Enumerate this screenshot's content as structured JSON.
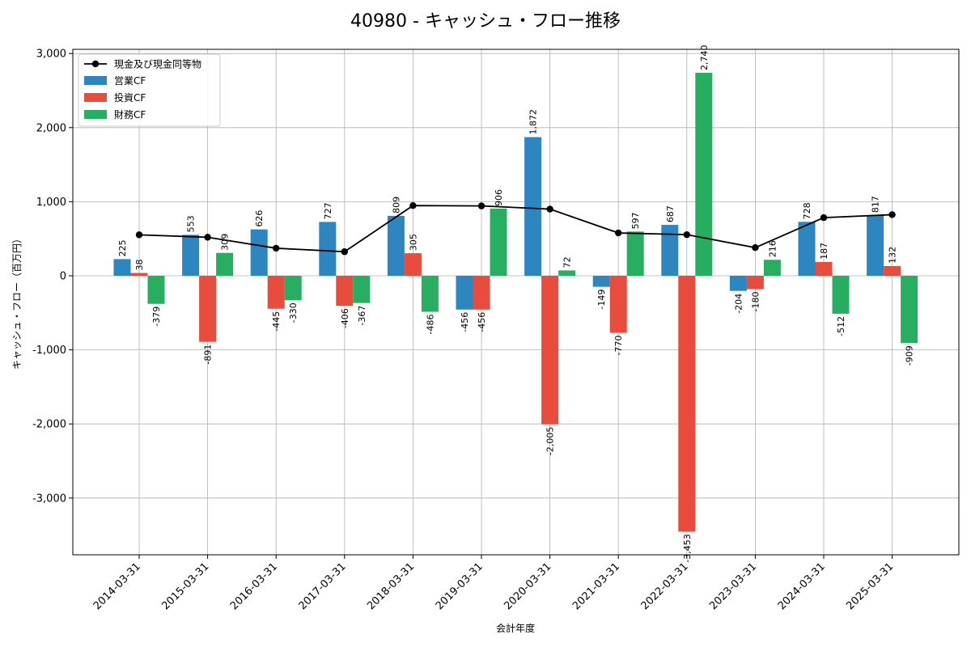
{
  "chart_data": {
    "type": "bar",
    "title": "40980 - キャッシュ・フロー推移",
    "xlabel": "会計年度",
    "ylabel": "キャッシュ・フロー（百万円）",
    "ylim": [
      -3700,
      3050
    ],
    "yticks": [
      -3000,
      -2000,
      -1000,
      0,
      1000,
      2000,
      3000
    ],
    "ytick_labels": [
      "-3,000",
      "-2,000",
      "-1,000",
      "0",
      "1,000",
      "2,000",
      "3,000"
    ],
    "categories": [
      "2014-03-31",
      "2015-03-31",
      "2016-03-31",
      "2017-03-31",
      "2018-03-31",
      "2019-03-31",
      "2020-03-31",
      "2021-03-31",
      "2022-03-31",
      "2023-03-31",
      "2024-03-31",
      "2025-03-31"
    ],
    "series": [
      {
        "name": "営業CF",
        "kind": "bar",
        "color": "#2e86c1",
        "values": [
          225,
          553,
          626,
          727,
          809,
          -456,
          1872,
          -149,
          687,
          -204,
          728,
          817
        ],
        "labels": [
          "225",
          "553",
          "626",
          "727",
          "809",
          "-456",
          "1,872",
          "-149",
          "687",
          "-204",
          "728",
          "817"
        ]
      },
      {
        "name": "投資CF",
        "kind": "bar",
        "color": "#e74c3c",
        "values": [
          38,
          -891,
          -445,
          -406,
          305,
          -456,
          -2005,
          -770,
          -3453,
          -180,
          187,
          132
        ],
        "labels": [
          "38",
          "-891",
          "-445",
          "-406",
          "305",
          "-456",
          "-2,005",
          "-770",
          "-3,453",
          "-180",
          "187",
          "132"
        ]
      },
      {
        "name": "財務CF",
        "kind": "bar",
        "color": "#27ae60",
        "values": [
          -379,
          309,
          -330,
          -367,
          -486,
          906,
          72,
          597,
          2740,
          216,
          -512,
          -909
        ],
        "labels": [
          "-379",
          "309",
          "-330",
          "-367",
          "-486",
          "906",
          "72",
          "597",
          "2,740",
          "216",
          "-512",
          "-909"
        ]
      },
      {
        "name": "現金及び現金同等物",
        "kind": "line",
        "color": "#000000",
        "values": [
          553,
          520,
          372,
          325,
          948,
          943,
          900,
          578,
          555,
          380,
          785,
          825
        ]
      }
    ],
    "legend": [
      "現金及び現金同等物",
      "営業CF",
      "投資CF",
      "財務CF"
    ],
    "legend_position": "top-left",
    "grid": true
  }
}
